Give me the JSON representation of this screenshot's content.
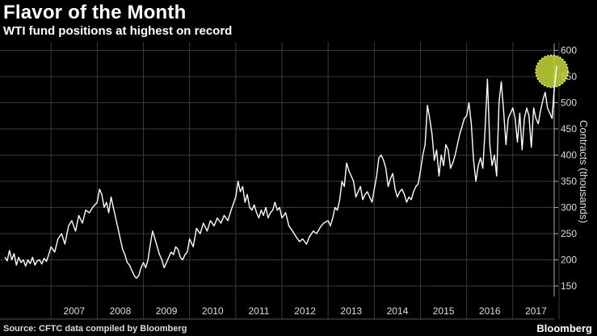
{
  "chart_data": {
    "type": "line",
    "title": "Flavor of the Month",
    "subtitle": "WTI fund positions at highest on record",
    "ylabel": "Contracts (thousands)",
    "ylim": [
      130,
      610
    ],
    "yticks": [
      150,
      200,
      250,
      300,
      350,
      400,
      450,
      500,
      550,
      600
    ],
    "xlim": [
      2006.0,
      2018.0
    ],
    "year_labels": [
      "2007",
      "2008",
      "2009",
      "2010",
      "2011",
      "2012",
      "2013",
      "2014",
      "2015",
      "2016",
      "2017"
    ],
    "grid": true,
    "highlight": {
      "x": 2017.95,
      "y": 560,
      "color": "#c6d83a"
    },
    "series": [
      {
        "line_color": "#ffffff",
        "x": [
          2006.0,
          2006.05,
          2006.1,
          2006.15,
          2006.2,
          2006.25,
          2006.3,
          2006.35,
          2006.4,
          2006.45,
          2006.5,
          2006.55,
          2006.6,
          2006.65,
          2006.7,
          2006.75,
          2006.8,
          2006.85,
          2006.9,
          2006.95,
          2007.0,
          2007.08,
          2007.15,
          2007.23,
          2007.3,
          2007.38,
          2007.45,
          2007.53,
          2007.6,
          2007.68,
          2007.75,
          2007.83,
          2007.9,
          2008.0,
          2008.05,
          2008.1,
          2008.15,
          2008.2,
          2008.25,
          2008.3,
          2008.35,
          2008.4,
          2008.45,
          2008.5,
          2008.55,
          2008.6,
          2008.65,
          2008.7,
          2008.75,
          2008.8,
          2008.85,
          2008.9,
          2008.95,
          2009.0,
          2009.05,
          2009.1,
          2009.15,
          2009.2,
          2009.25,
          2009.3,
          2009.35,
          2009.4,
          2009.45,
          2009.5,
          2009.55,
          2009.6,
          2009.65,
          2009.7,
          2009.75,
          2009.8,
          2009.85,
          2009.9,
          2009.95,
          2010.0,
          2010.08,
          2010.15,
          2010.23,
          2010.3,
          2010.38,
          2010.45,
          2010.53,
          2010.6,
          2010.68,
          2010.75,
          2010.83,
          2010.9,
          2011.0,
          2011.05,
          2011.1,
          2011.15,
          2011.2,
          2011.25,
          2011.3,
          2011.35,
          2011.4,
          2011.45,
          2011.5,
          2011.55,
          2011.6,
          2011.65,
          2011.7,
          2011.75,
          2011.8,
          2011.85,
          2011.9,
          2011.95,
          2012.0,
          2012.08,
          2012.15,
          2012.23,
          2012.3,
          2012.38,
          2012.45,
          2012.53,
          2012.6,
          2012.68,
          2012.75,
          2012.83,
          2012.9,
          2013.0,
          2013.05,
          2013.1,
          2013.15,
          2013.2,
          2013.25,
          2013.3,
          2013.35,
          2013.4,
          2013.45,
          2013.5,
          2013.55,
          2013.6,
          2013.65,
          2013.7,
          2013.75,
          2013.8,
          2013.85,
          2013.9,
          2013.95,
          2014.0,
          2014.05,
          2014.1,
          2014.15,
          2014.2,
          2014.25,
          2014.3,
          2014.35,
          2014.4,
          2014.45,
          2014.5,
          2014.55,
          2014.6,
          2014.65,
          2014.7,
          2014.75,
          2014.8,
          2014.85,
          2014.9,
          2014.95,
          2015.0,
          2015.05,
          2015.1,
          2015.15,
          2015.2,
          2015.25,
          2015.3,
          2015.35,
          2015.4,
          2015.45,
          2015.5,
          2015.55,
          2015.6,
          2015.65,
          2015.7,
          2015.75,
          2015.8,
          2015.85,
          2015.9,
          2015.95,
          2016.0,
          2016.05,
          2016.1,
          2016.15,
          2016.2,
          2016.25,
          2016.3,
          2016.35,
          2016.4,
          2016.45,
          2016.5,
          2016.55,
          2016.6,
          2016.65,
          2016.7,
          2016.75,
          2016.8,
          2016.85,
          2016.9,
          2016.95,
          2017.0,
          2017.05,
          2017.1,
          2017.15,
          2017.2,
          2017.25,
          2017.3,
          2017.35,
          2017.4,
          2017.45,
          2017.5,
          2017.55,
          2017.6,
          2017.65,
          2017.7,
          2017.75,
          2017.8,
          2017.85,
          2017.9,
          2017.95
        ],
        "values": [
          205,
          198,
          218,
          200,
          212,
          190,
          205,
          195,
          200,
          188,
          200,
          193,
          205,
          190,
          198,
          200,
          192,
          203,
          197,
          210,
          225,
          215,
          240,
          250,
          230,
          265,
          275,
          255,
          285,
          270,
          295,
          290,
          300,
          310,
          335,
          325,
          300,
          310,
          290,
          320,
          300,
          280,
          260,
          240,
          220,
          210,
          195,
          190,
          180,
          170,
          165,
          170,
          185,
          195,
          185,
          200,
          230,
          255,
          240,
          225,
          210,
          200,
          185,
          195,
          205,
          215,
          210,
          225,
          220,
          205,
          200,
          210,
          215,
          240,
          225,
          260,
          250,
          270,
          255,
          275,
          265,
          280,
          270,
          285,
          275,
          295,
          320,
          350,
          330,
          340,
          310,
          325,
          300,
          295,
          305,
          290,
          280,
          295,
          285,
          300,
          280,
          290,
          295,
          310,
          295,
          300,
          280,
          290,
          265,
          255,
          245,
          235,
          240,
          230,
          245,
          255,
          250,
          262,
          270,
          275,
          265,
          280,
          300,
          295,
          315,
          350,
          340,
          385,
          370,
          360,
          350,
          320,
          330,
          340,
          315,
          325,
          330,
          320,
          310,
          335,
          360,
          395,
          400,
          390,
          375,
          340,
          355,
          365,
          335,
          320,
          330,
          335,
          325,
          310,
          320,
          315,
          330,
          340,
          345,
          370,
          400,
          420,
          495,
          470,
          440,
          390,
          410,
          360,
          400,
          380,
          420,
          410,
          375,
          385,
          400,
          420,
          440,
          455,
          470,
          475,
          500,
          460,
          390,
          350,
          380,
          395,
          375,
          450,
          545,
          420,
          380,
          400,
          360,
          500,
          540,
          485,
          420,
          470,
          480,
          490,
          470,
          425,
          480,
          410,
          470,
          490,
          475,
          415,
          490,
          470,
          460,
          485,
          505,
          520,
          490,
          480,
          470,
          530,
          570
        ]
      }
    ]
  },
  "footer": {
    "source": "Source: CFTC data compiled by Bloomberg",
    "brand": "Bloomberg"
  }
}
